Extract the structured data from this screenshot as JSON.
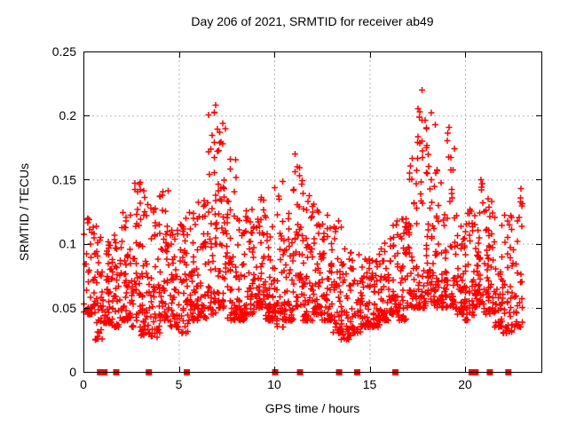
{
  "chart_data": {
    "type": "scatter",
    "title": "Day 206 of 2021, SRMTID for receiver ab49",
    "xlabel": "GPS time / hours",
    "ylabel": "SRMTID / TECUs",
    "xlim": [
      0,
      24
    ],
    "ylim": [
      0,
      0.25
    ],
    "xticks": [
      0,
      5,
      10,
      15,
      20
    ],
    "xtick_labels": [
      "0",
      "5",
      "10",
      "15",
      "20"
    ],
    "yticks": [
      0,
      0.05,
      0.1,
      0.15,
      0.2,
      0.25
    ],
    "ytick_labels": [
      "0",
      "0.05",
      "0.1",
      "0.15",
      "0.2",
      "0.25"
    ],
    "grid": true,
    "legend_position": "none",
    "colors": {
      "marker": "#ff0000",
      "grid": "#b3b3b3",
      "axis": "#000000",
      "background": "#ffffff"
    },
    "marker": {
      "symbol": "plus",
      "size": 7
    },
    "zero_marker": {
      "symbol": "square",
      "size": 7
    },
    "zero_marker_hours": [
      0.87,
      0.95,
      1.03,
      1.1,
      1.72,
      3.43,
      5.42,
      10.05,
      11.35,
      13.4,
      14.35,
      16.35,
      20.35,
      20.55,
      21.3,
      22.27
    ],
    "density_profile_columns": [
      "hour_start",
      "hour_end",
      "n_points",
      "y_min",
      "y_max"
    ],
    "density_profile": [
      [
        0.0,
        0.5,
        32,
        0.045,
        0.125
      ],
      [
        0.5,
        1.0,
        46,
        0.025,
        0.115
      ],
      [
        1.0,
        1.5,
        46,
        0.038,
        0.105
      ],
      [
        1.5,
        2.0,
        42,
        0.035,
        0.11
      ],
      [
        2.0,
        2.5,
        46,
        0.04,
        0.125
      ],
      [
        2.5,
        3.0,
        46,
        0.035,
        0.148
      ],
      [
        3.0,
        3.5,
        46,
        0.028,
        0.148
      ],
      [
        3.5,
        4.0,
        42,
        0.027,
        0.138
      ],
      [
        4.0,
        4.5,
        46,
        0.04,
        0.142
      ],
      [
        4.5,
        5.0,
        42,
        0.035,
        0.118
      ],
      [
        5.0,
        5.5,
        42,
        0.03,
        0.122
      ],
      [
        5.5,
        6.0,
        46,
        0.04,
        0.128
      ],
      [
        6.0,
        6.5,
        46,
        0.042,
        0.138
      ],
      [
        6.5,
        7.0,
        52,
        0.045,
        0.212
      ],
      [
        7.0,
        7.5,
        52,
        0.05,
        0.198
      ],
      [
        7.5,
        8.0,
        46,
        0.04,
        0.168
      ],
      [
        8.0,
        8.5,
        46,
        0.04,
        0.122
      ],
      [
        8.5,
        9.0,
        42,
        0.045,
        0.132
      ],
      [
        9.0,
        9.5,
        46,
        0.05,
        0.142
      ],
      [
        9.5,
        10.0,
        46,
        0.04,
        0.122
      ],
      [
        10.0,
        10.5,
        46,
        0.035,
        0.152
      ],
      [
        10.5,
        11.0,
        42,
        0.04,
        0.142
      ],
      [
        11.0,
        11.5,
        46,
        0.05,
        0.172
      ],
      [
        11.5,
        12.0,
        46,
        0.04,
        0.138
      ],
      [
        12.0,
        12.5,
        46,
        0.045,
        0.132
      ],
      [
        12.5,
        13.0,
        42,
        0.04,
        0.126
      ],
      [
        13.0,
        13.5,
        42,
        0.03,
        0.122
      ],
      [
        13.5,
        14.0,
        36,
        0.025,
        0.102
      ],
      [
        14.0,
        14.5,
        36,
        0.03,
        0.098
      ],
      [
        14.5,
        15.0,
        46,
        0.035,
        0.092
      ],
      [
        15.0,
        15.5,
        46,
        0.035,
        0.096
      ],
      [
        15.5,
        16.0,
        42,
        0.04,
        0.102
      ],
      [
        16.0,
        16.5,
        46,
        0.045,
        0.118
      ],
      [
        16.5,
        17.0,
        42,
        0.04,
        0.122
      ],
      [
        17.0,
        17.5,
        46,
        0.05,
        0.168
      ],
      [
        17.5,
        18.0,
        52,
        0.05,
        0.222
      ],
      [
        18.0,
        18.5,
        52,
        0.05,
        0.205
      ],
      [
        18.5,
        19.0,
        46,
        0.05,
        0.158
      ],
      [
        19.0,
        19.5,
        46,
        0.05,
        0.202
      ],
      [
        19.5,
        20.0,
        46,
        0.045,
        0.132
      ],
      [
        20.0,
        20.5,
        46,
        0.04,
        0.128
      ],
      [
        20.5,
        21.0,
        46,
        0.05,
        0.152
      ],
      [
        21.0,
        21.5,
        46,
        0.045,
        0.138
      ],
      [
        21.5,
        22.0,
        42,
        0.035,
        0.122
      ],
      [
        22.0,
        22.5,
        42,
        0.03,
        0.128
      ],
      [
        22.5,
        23.0,
        32,
        0.035,
        0.152
      ]
    ]
  }
}
